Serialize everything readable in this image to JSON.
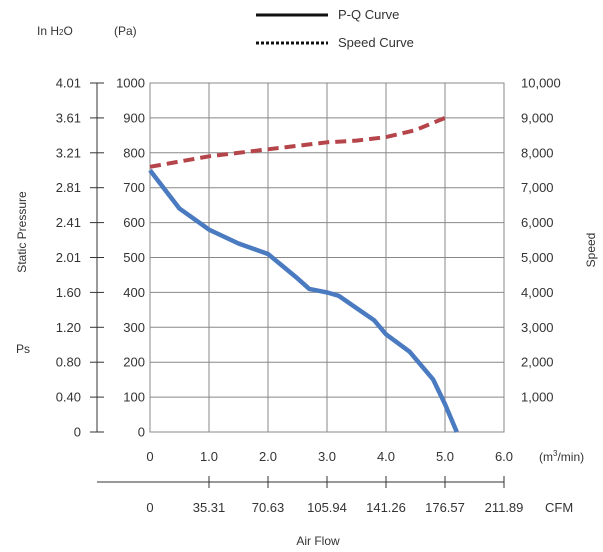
{
  "chart_data": {
    "type": "line",
    "xlabel": "Air Flow",
    "ylabel": "Static Pressure",
    "y2label": "Speed",
    "ps_label": "Ps",
    "unit_inh2o_prefix": "In H",
    "unit_inh2o_sub": "2",
    "unit_inh2o_suffix": "O",
    "unit_pa": "(Pa)",
    "unit_m3min_prefix": "(m",
    "unit_m3min_sup": "3",
    "unit_m3min_suffix": "/min)",
    "unit_cfm": "CFM",
    "xlim": [
      0,
      6
    ],
    "ylim": [
      0,
      1000
    ],
    "y2lim": [
      0,
      10000
    ],
    "grid": true,
    "legend_position": "top",
    "x_ticks": [
      "0",
      "1.0",
      "2.0",
      "3.0",
      "4.0",
      "5.0",
      "6.0"
    ],
    "cfm_ticks": [
      "0",
      "35.31",
      "70.63",
      "105.94",
      "141.26",
      "176.57",
      "211.89"
    ],
    "pa_ticks": [
      "0",
      "100",
      "200",
      "300",
      "400",
      "500",
      "600",
      "700",
      "800",
      "900",
      "1000"
    ],
    "inh2o_ticks": [
      "0",
      "0.40",
      "0.80",
      "1.20",
      "1.60",
      "2.01",
      "2.41",
      "2.81",
      "3.21",
      "3.61",
      "4.01"
    ],
    "speed_ticks": [
      "",
      "1,000",
      "2,000",
      "3,000",
      "4,000",
      "5,000",
      "6,000",
      "7,000",
      "8,000",
      "9,000",
      "10,000"
    ],
    "series": [
      {
        "name": "P-Q Curve",
        "axis": "left",
        "color": "#4a7ac0",
        "style": "solid",
        "x": [
          0,
          0.5,
          1.0,
          1.5,
          2.0,
          2.5,
          2.7,
          3.0,
          3.2,
          3.8,
          4.0,
          4.4,
          4.8,
          5.0,
          5.2
        ],
        "y": [
          750,
          640,
          580,
          540,
          510,
          440,
          410,
          400,
          390,
          320,
          280,
          230,
          150,
          80,
          0
        ]
      },
      {
        "name": "Speed Curve",
        "axis": "right",
        "color": "#b5454a",
        "style": "dashed",
        "x": [
          0,
          1.0,
          2.0,
          3.0,
          3.5,
          4.0,
          4.5,
          5.0
        ],
        "y": [
          7600,
          7900,
          8100,
          8300,
          8350,
          8450,
          8650,
          9000
        ]
      }
    ]
  }
}
